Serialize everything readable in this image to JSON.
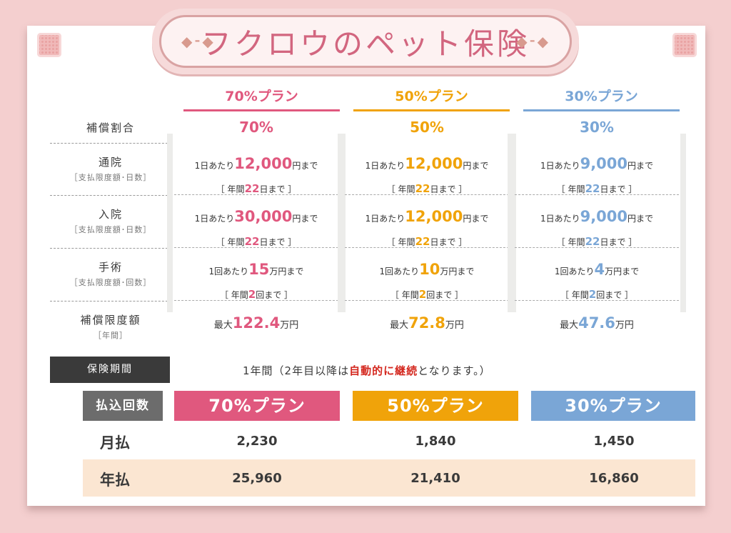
{
  "title": "フクロウのペット保険",
  "plans": [
    {
      "name": "70%プラン",
      "ratio": "70%",
      "color": "#e0587e",
      "tsuin": {
        "pre": "1日あたり",
        "num": "12,000",
        "post": "円まで",
        "limit_pre": "［ 年間",
        "limit_num": "22",
        "limit_post": "日まで ］"
      },
      "nyuin": {
        "pre": "1日あたり",
        "num": "30,000",
        "post": "円まで",
        "limit_pre": "［ 年間",
        "limit_num": "22",
        "limit_post": "日まで ］"
      },
      "shujutsu": {
        "pre": "1回あたり",
        "num": "15",
        "post": "万円まで",
        "limit_pre": "［ 年間",
        "limit_num": "2",
        "limit_post": "回まで ］"
      },
      "max": {
        "pre": "最大",
        "num": "122.4",
        "post": "万円"
      },
      "monthly": "2,230",
      "yearly": "25,960"
    },
    {
      "name": "50%プラン",
      "ratio": "50%",
      "color": "#f0a30a",
      "tsuin": {
        "pre": "1日あたり",
        "num": "12,000",
        "post": "円まで",
        "limit_pre": "［ 年間",
        "limit_num": "22",
        "limit_post": "日まで ］"
      },
      "nyuin": {
        "pre": "1日あたり",
        "num": "12,000",
        "post": "円まで",
        "limit_pre": "［ 年間",
        "limit_num": "22",
        "limit_post": "日まで ］"
      },
      "shujutsu": {
        "pre": "1回あたり",
        "num": "10",
        "post": "万円まで",
        "limit_pre": "［ 年間",
        "limit_num": "2",
        "limit_post": "回まで ］"
      },
      "max": {
        "pre": "最大",
        "num": "72.8",
        "post": "万円"
      },
      "monthly": "1,840",
      "yearly": "21,410"
    },
    {
      "name": "30%プラン",
      "ratio": "30%",
      "color": "#7aa6d6",
      "tsuin": {
        "pre": "1日あたり",
        "num": "9,000",
        "post": "円まで",
        "limit_pre": "［ 年間",
        "limit_num": "22",
        "limit_post": "日まで ］"
      },
      "nyuin": {
        "pre": "1日あたり",
        "num": "9,000",
        "post": "円まで",
        "limit_pre": "［ 年間",
        "limit_num": "22",
        "limit_post": "日まで ］"
      },
      "shujutsu": {
        "pre": "1回あたり",
        "num": "4",
        "post": "万円まで",
        "limit_pre": "［ 年間",
        "limit_num": "2",
        "limit_post": "回まで ］"
      },
      "max": {
        "pre": "最大",
        "num": "47.6",
        "post": "万円"
      },
      "monthly": "1,450",
      "yearly": "16,860"
    }
  ],
  "rows": {
    "ratio": "補償割合",
    "tsuin": "通院",
    "tsuin_sub": "［支払限度額･日数］",
    "nyuin": "入院",
    "nyuin_sub": "［支払限度額･日数］",
    "shujutsu": "手術",
    "shujutsu_sub": "［支払限度額･回数］",
    "max": "補償限度額",
    "max_sub": "［年間］"
  },
  "period": {
    "label": "保険期間",
    "text_pre": "1年間（2年目以降は",
    "text_red": "自動的に継続",
    "text_post": "となります。）"
  },
  "payment": {
    "label": "払込回数",
    "monthly": "月払",
    "yearly": "年払"
  },
  "decor": {
    "left": "◆⁃◆",
    "right": "◆⁃◆"
  }
}
